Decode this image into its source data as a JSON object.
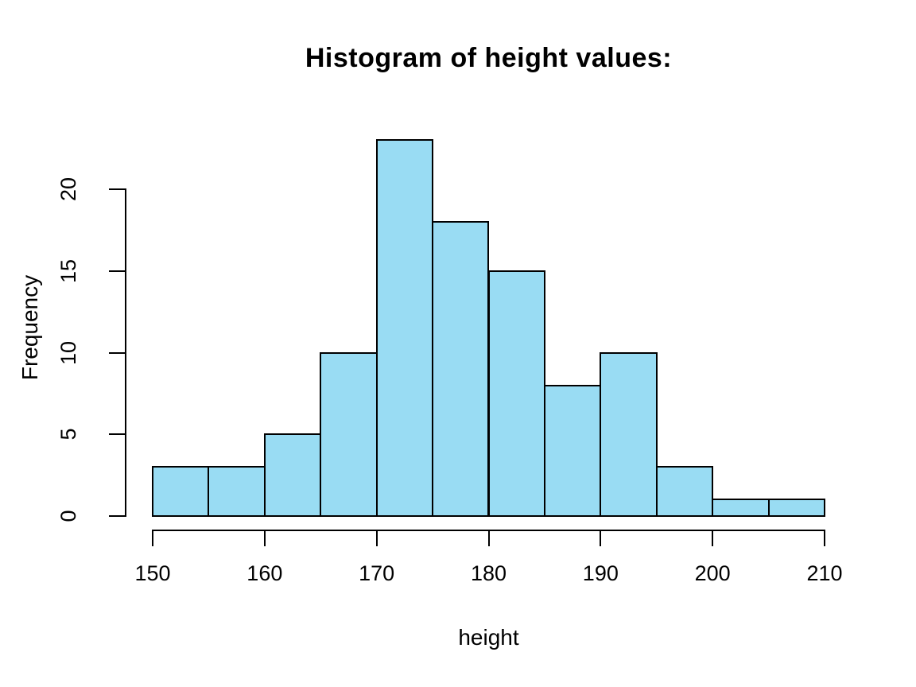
{
  "chart_data": {
    "type": "bar",
    "subtype": "histogram",
    "title": "Histogram of height values:",
    "xlabel": "height",
    "ylabel": "Frequency",
    "bin_edges": [
      150,
      155,
      160,
      165,
      170,
      175,
      180,
      185,
      190,
      195,
      200,
      205,
      210
    ],
    "categories": [
      "150-155",
      "155-160",
      "160-165",
      "165-170",
      "170-175",
      "175-180",
      "180-185",
      "185-190",
      "190-195",
      "195-200",
      "200-205",
      "205-210"
    ],
    "values": [
      3,
      3,
      5,
      10,
      23,
      18,
      15,
      8,
      10,
      3,
      1,
      1
    ],
    "x_ticks": [
      150,
      160,
      170,
      180,
      190,
      200,
      210
    ],
    "y_ticks": [
      0,
      5,
      10,
      15,
      20
    ],
    "xlim": [
      150,
      210
    ],
    "ylim": [
      0,
      20
    ],
    "grid": false,
    "legend": "none",
    "bar_fill": "#99DCF3",
    "bar_stroke": "#000000",
    "background": "#ffffff"
  }
}
